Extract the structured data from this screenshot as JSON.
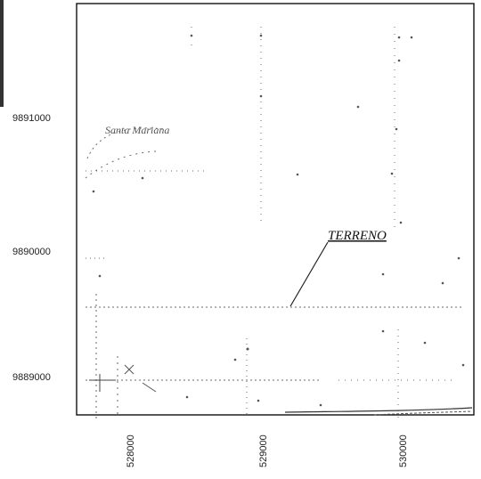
{
  "map": {
    "y_ticks": [
      "9891000",
      "9890000",
      "9889000"
    ],
    "x_ticks": [
      "528000",
      "529000",
      "530000"
    ],
    "annotations": {
      "place_label": "Santa Mariana",
      "terrain_label": "TERRENO"
    },
    "colors": {
      "frame": "#111111",
      "features": "#6a6a6a",
      "pointer": "#222222"
    }
  }
}
